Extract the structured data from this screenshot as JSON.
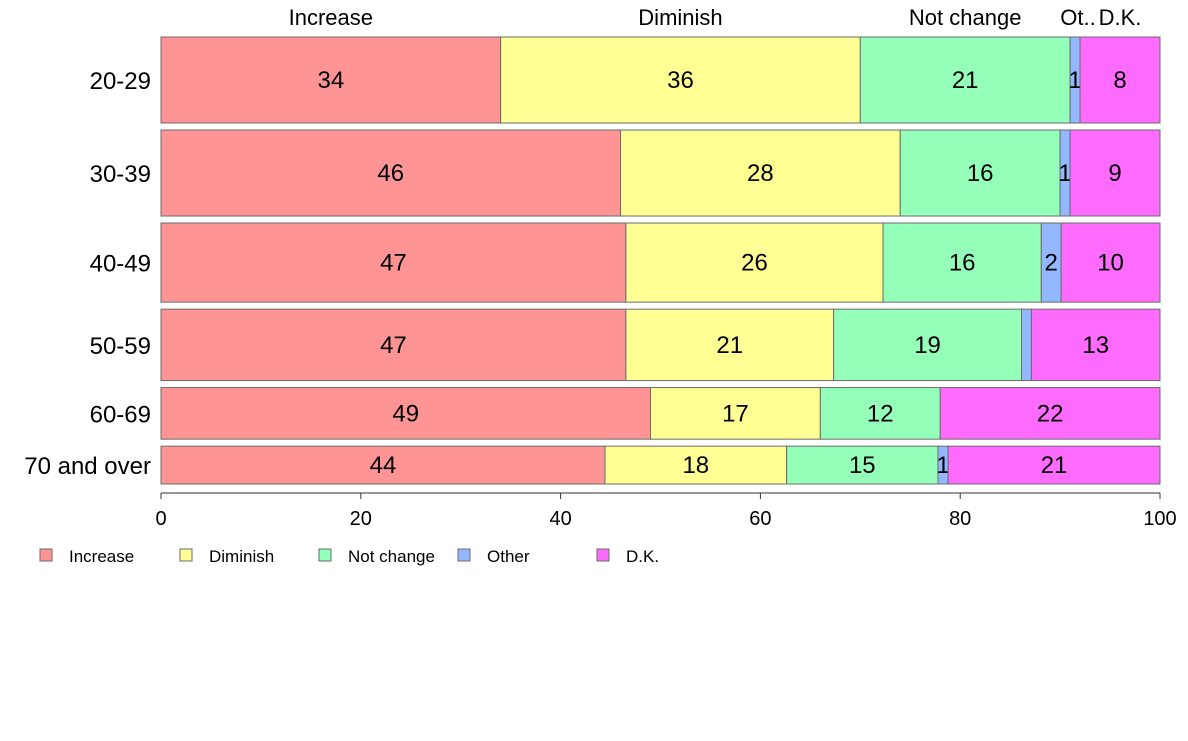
{
  "chart_data": {
    "type": "bar",
    "orientation": "horizontal",
    "stacked": true,
    "title": "",
    "xlabel": "",
    "ylabel": "",
    "xlim": [
      0,
      100
    ],
    "xticks": [
      0,
      20,
      40,
      60,
      80,
      100
    ],
    "grid": false,
    "legend_position": "bottom-left",
    "categories": [
      "20-29",
      "30-39",
      "40-49",
      "50-59",
      "60-69",
      "70 and over"
    ],
    "series": [
      {
        "name": "Increase",
        "color": "#FF9494",
        "values": [
          34,
          46,
          47,
          47,
          49,
          44
        ]
      },
      {
        "name": "Diminish",
        "color": "#FFFF94",
        "values": [
          36,
          28,
          26,
          21,
          17,
          18
        ]
      },
      {
        "name": "Not change",
        "color": "#94FFB8",
        "values": [
          21,
          16,
          16,
          19,
          12,
          15
        ]
      },
      {
        "name": "Other",
        "color": "#94B8FF",
        "values": [
          1,
          1,
          2,
          1,
          0,
          1
        ]
      },
      {
        "name": "D.K.",
        "color": "#FF6BFF",
        "values": [
          8,
          9,
          10,
          13,
          22,
          21
        ]
      }
    ],
    "segment_labels": [
      [
        "34",
        "36",
        "21",
        "1",
        "8"
      ],
      [
        "46",
        "28",
        "16",
        "1",
        "9"
      ],
      [
        "47",
        "26",
        "16",
        "2",
        "10"
      ],
      [
        "47",
        "21",
        "19",
        "",
        "13"
      ],
      [
        "49",
        "17",
        "12",
        "",
        "22"
      ],
      [
        "44",
        "18",
        "15",
        "1",
        "21"
      ]
    ],
    "top_labels": [
      "Increase",
      "Diminish",
      "Not change",
      "Ot..",
      "D.K."
    ],
    "bar_weights": [
      1.0,
      1.0,
      0.92,
      0.83,
      0.6,
      0.44
    ]
  }
}
